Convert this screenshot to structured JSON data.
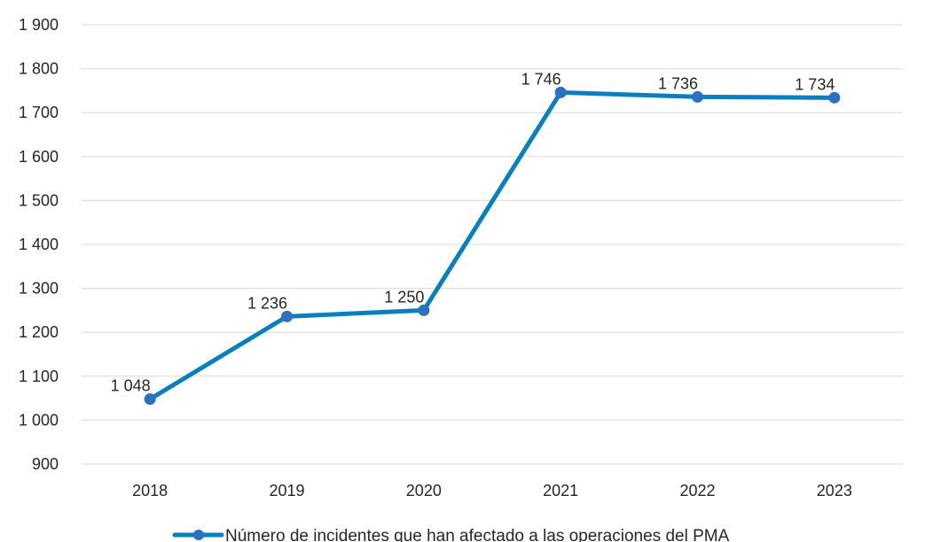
{
  "chart_data": {
    "type": "line",
    "categories": [
      "2018",
      "2019",
      "2020",
      "2021",
      "2022",
      "2023"
    ],
    "series": [
      {
        "name": "Número de incidentes que han afectado a las operaciones del PMA",
        "values": [
          1048,
          1236,
          1250,
          1746,
          1736,
          1734
        ],
        "labels": [
          "1 048",
          "1 236",
          "1 250",
          "1 746",
          "1 736",
          "1 734"
        ],
        "color": "#0a7fbd"
      }
    ],
    "y_ticks": [
      {
        "value": 900,
        "label": "900"
      },
      {
        "value": 1000,
        "label": "1 000"
      },
      {
        "value": 1100,
        "label": "1 100"
      },
      {
        "value": 1200,
        "label": "1 200"
      },
      {
        "value": 1300,
        "label": "1 300"
      },
      {
        "value": 1400,
        "label": "1 400"
      },
      {
        "value": 1500,
        "label": "1 500"
      },
      {
        "value": 1600,
        "label": "1 600"
      },
      {
        "value": 1700,
        "label": "1 700"
      },
      {
        "value": 1800,
        "label": "1 800"
      },
      {
        "value": 1900,
        "label": "1 900"
      }
    ],
    "ylim": [
      900,
      1900
    ],
    "grid": true,
    "legend_position": "bottom",
    "marker_color": "#2e6fc0"
  }
}
